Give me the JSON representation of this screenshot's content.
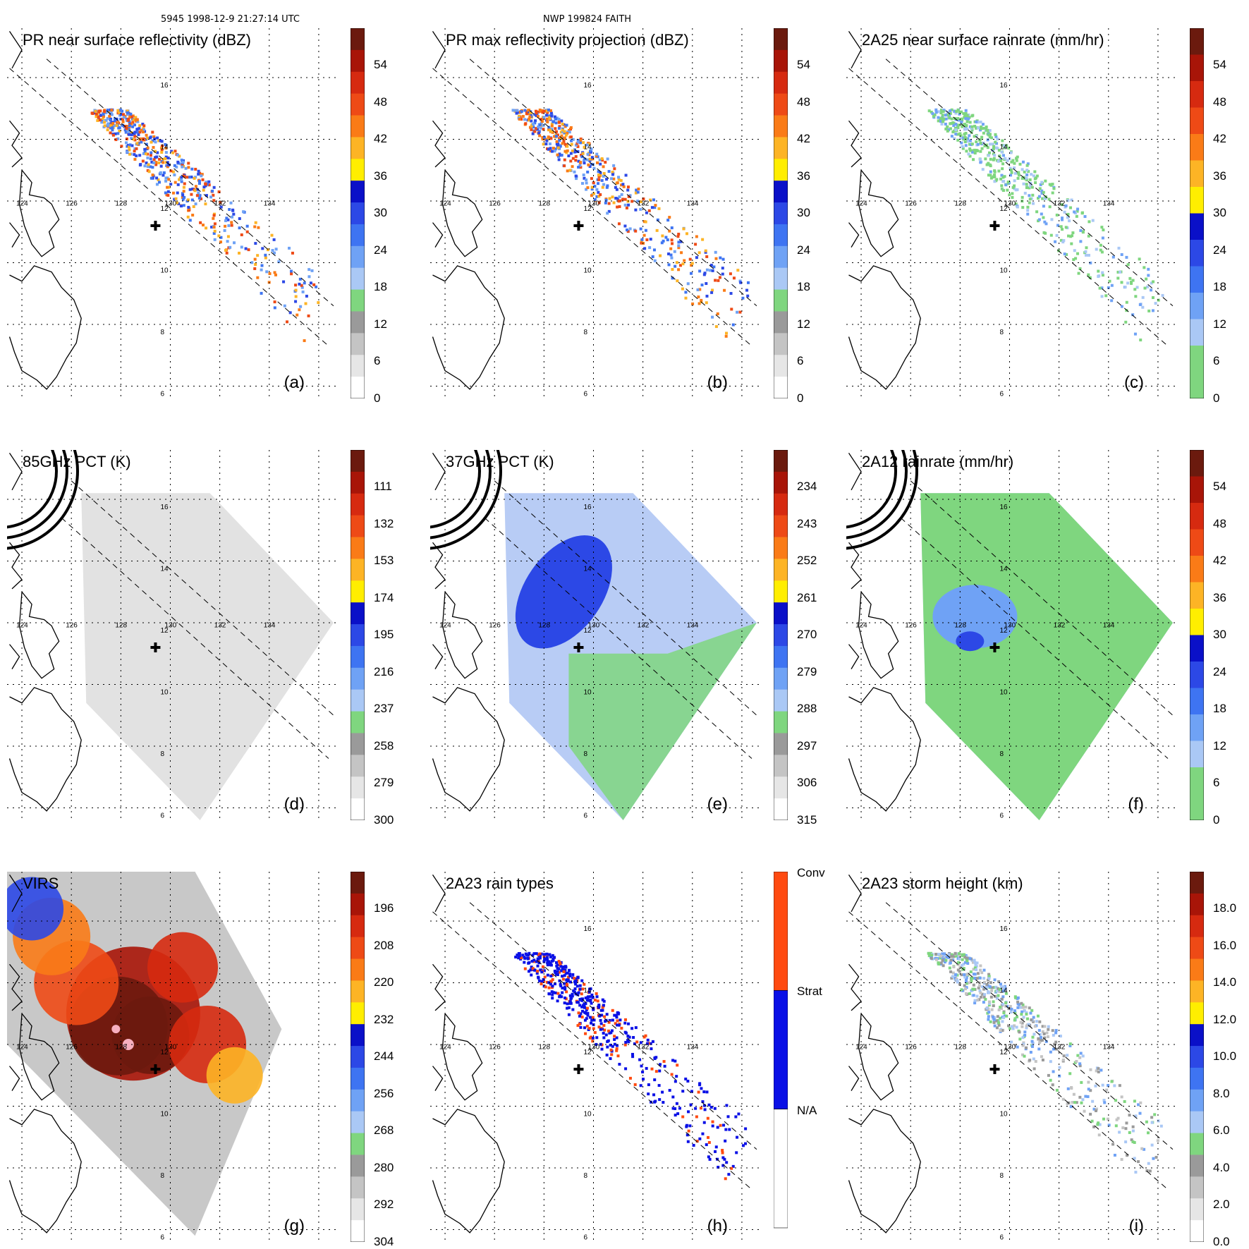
{
  "header": {
    "left": "5945 1998-12-9 21:27:14 UTC",
    "center": "NWP 199824 FAITH"
  },
  "chart_data": [
    {
      "type": "heatmap",
      "label": "(a)",
      "title": "PR near surface reflectivity (dBZ)",
      "xticks": [
        "124",
        "126",
        "128",
        "130",
        "132",
        "134"
      ],
      "yticks": [
        "16",
        "14",
        "12",
        "10",
        "8",
        "6"
      ],
      "colorbar": {
        "ticks": [
          "54",
          "48",
          "42",
          "36",
          "30",
          "24",
          "18",
          "12",
          "6",
          "0"
        ],
        "colors": [
          "#6b1a0e",
          "#a81508",
          "#d62a10",
          "#ee4a16",
          "#fa7b17",
          "#fdb425",
          "#ffee00",
          "#0a10c8",
          "#2c48e6",
          "#3e74f2",
          "#6fa2f5",
          "#aac8f5",
          "#7fd67f",
          "#9a9a9a",
          "#c4c4c4",
          "#e6e6e6",
          "#ffffff"
        ]
      },
      "swath": "pr",
      "track": "pr"
    },
    {
      "type": "heatmap",
      "label": "(b)",
      "title": "PR max reflectivity projection (dBZ)",
      "xticks": [
        "124",
        "126",
        "128",
        "130",
        "132",
        "134"
      ],
      "yticks": [
        "16",
        "14",
        "12",
        "10",
        "8",
        "6"
      ],
      "colorbar": {
        "ticks": [
          "54",
          "48",
          "42",
          "36",
          "30",
          "24",
          "18",
          "12",
          "6",
          "0"
        ],
        "colors": [
          "#6b1a0e",
          "#a81508",
          "#d62a10",
          "#ee4a16",
          "#fa7b17",
          "#fdb425",
          "#ffee00",
          "#0a10c8",
          "#2c48e6",
          "#3e74f2",
          "#6fa2f5",
          "#aac8f5",
          "#7fd67f",
          "#9a9a9a",
          "#c4c4c4",
          "#e6e6e6",
          "#ffffff"
        ]
      },
      "swath": "pr",
      "track": "pr"
    },
    {
      "type": "heatmap",
      "label": "(c)",
      "title": "2A25 near surface rainrate (mm/hr)",
      "xticks": [
        "124",
        "126",
        "128",
        "130",
        "132",
        "134"
      ],
      "yticks": [
        "16",
        "14",
        "12",
        "10",
        "8",
        "6"
      ],
      "colorbar": {
        "ticks": [
          "54",
          "48",
          "42",
          "36",
          "30",
          "24",
          "18",
          "12",
          "6",
          "0"
        ],
        "colors": [
          "#6b1a0e",
          "#a81508",
          "#d62a10",
          "#ee4a16",
          "#fa7b17",
          "#fdb425",
          "#ffee00",
          "#0a10c8",
          "#2c48e6",
          "#3e74f2",
          "#6fa2f5",
          "#aac8f5",
          "#7fd67f",
          "#7fd67f"
        ]
      },
      "swath": "pr",
      "track": "pr"
    },
    {
      "type": "heatmap",
      "label": "(d)",
      "title": "85GHz PCT (K)",
      "xticks": [
        "124",
        "126",
        "128",
        "130",
        "132",
        "134"
      ],
      "yticks": [
        "16",
        "14",
        "12",
        "10",
        "8",
        "6"
      ],
      "colorbar": {
        "ticks": [
          "111",
          "132",
          "153",
          "174",
          "195",
          "216",
          "237",
          "258",
          "279",
          "300"
        ],
        "colors": [
          "#6b1a0e",
          "#a81508",
          "#d62a10",
          "#ee4a16",
          "#fa7b17",
          "#fdb425",
          "#ffee00",
          "#0a10c8",
          "#2c48e6",
          "#3e74f2",
          "#6fa2f5",
          "#aac8f5",
          "#7fd67f",
          "#9a9a9a",
          "#c4c4c4",
          "#e6e6e6",
          "#ffffff"
        ]
      },
      "swath": "tmi",
      "track": "tmi"
    },
    {
      "type": "heatmap",
      "label": "(e)",
      "title": "37GHz PCT (K)",
      "xticks": [
        "124",
        "126",
        "128",
        "130",
        "132",
        "134"
      ],
      "yticks": [
        "16",
        "14",
        "12",
        "10",
        "8",
        "6"
      ],
      "colorbar": {
        "ticks": [
          "234",
          "243",
          "252",
          "261",
          "270",
          "279",
          "288",
          "297",
          "306",
          "315"
        ],
        "colors": [
          "#6b1a0e",
          "#a81508",
          "#d62a10",
          "#ee4a16",
          "#fa7b17",
          "#fdb425",
          "#ffee00",
          "#0a10c8",
          "#2c48e6",
          "#3e74f2",
          "#6fa2f5",
          "#aac8f5",
          "#7fd67f",
          "#9a9a9a",
          "#c4c4c4",
          "#e6e6e6",
          "#ffffff"
        ]
      },
      "swath": "tmi",
      "track": "tmi"
    },
    {
      "type": "heatmap",
      "label": "(f)",
      "title": "2A12 rainrate (mm/hr)",
      "xticks": [
        "124",
        "126",
        "128",
        "130",
        "132",
        "134"
      ],
      "yticks": [
        "16",
        "14",
        "12",
        "10",
        "8",
        "6"
      ],
      "colorbar": {
        "ticks": [
          "54",
          "48",
          "42",
          "36",
          "30",
          "24",
          "18",
          "12",
          "6",
          "0"
        ],
        "colors": [
          "#6b1a0e",
          "#a81508",
          "#d62a10",
          "#ee4a16",
          "#fa7b17",
          "#fdb425",
          "#ffee00",
          "#0a10c8",
          "#2c48e6",
          "#3e74f2",
          "#6fa2f5",
          "#aac8f5",
          "#7fd67f",
          "#7fd67f"
        ]
      },
      "swath": "tmi",
      "track": "tmi"
    },
    {
      "type": "heatmap",
      "label": "(g)",
      "title": "VIRS",
      "xticks": [
        "124",
        "126",
        "128",
        "130"
      ],
      "yticks": [
        "12",
        "10",
        "8",
        "6"
      ],
      "colorbar": {
        "ticks": [
          "196",
          "208",
          "220",
          "232",
          "244",
          "256",
          "268",
          "280",
          "292",
          "304"
        ],
        "colors": [
          "#6b1a0e",
          "#a81508",
          "#d62a10",
          "#ee4a16",
          "#fa7b17",
          "#fdb425",
          "#ffee00",
          "#0a10c8",
          "#2c48e6",
          "#3e74f2",
          "#6fa2f5",
          "#aac8f5",
          "#7fd67f",
          "#9a9a9a",
          "#c4c4c4",
          "#e6e6e6",
          "#ffffff"
        ]
      },
      "swath": "virs",
      "track": "none"
    },
    {
      "type": "heatmap",
      "label": "(h)",
      "title": "2A23 rain types",
      "xticks": [
        "124",
        "126",
        "128",
        "130",
        "132",
        "134"
      ],
      "yticks": [
        "16",
        "14",
        "12",
        "10",
        "8",
        "6"
      ],
      "categories": [
        "Conv",
        "Strat",
        "N/A"
      ],
      "colorbar": {
        "ticks": [],
        "colors": [
          "#ff4a10",
          "#0a10e6",
          "#ffffff"
        ]
      },
      "swath": "pr",
      "track": "pr"
    },
    {
      "type": "heatmap",
      "label": "(i)",
      "title": "2A23 storm height (km)",
      "xticks": [
        "124",
        "126",
        "128",
        "130",
        "132",
        "134"
      ],
      "yticks": [
        "16",
        "14",
        "12",
        "10",
        "8",
        "6"
      ],
      "colorbar": {
        "ticks": [
          "18.0",
          "16.0",
          "14.0",
          "12.0",
          "10.0",
          "8.0",
          "6.0",
          "4.0",
          "2.0",
          "0.0"
        ],
        "colors": [
          "#6b1a0e",
          "#a81508",
          "#d62a10",
          "#ee4a16",
          "#fa7b17",
          "#fdb425",
          "#ffee00",
          "#0a10c8",
          "#2c48e6",
          "#3e74f2",
          "#6fa2f5",
          "#aac8f5",
          "#7fd67f",
          "#9a9a9a",
          "#c4c4c4",
          "#e6e6e6",
          "#ffffff"
        ]
      },
      "swath": "pr",
      "track": "pr"
    }
  ]
}
